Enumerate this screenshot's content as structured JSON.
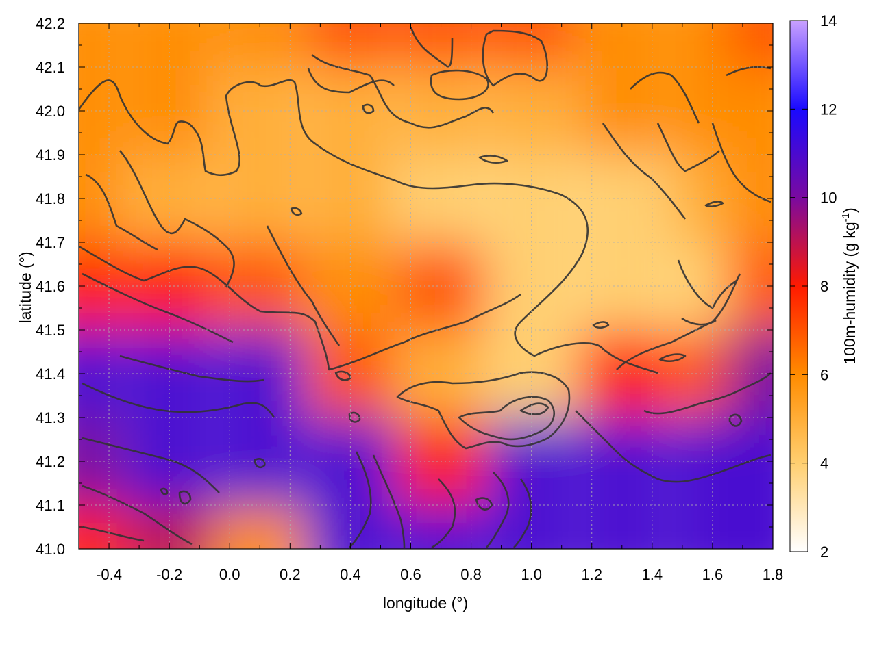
{
  "chart_data": {
    "type": "heatmap",
    "title": "",
    "xlabel": "longitude (°)",
    "ylabel": "latitude (°)",
    "colorbar_label_main": "100m-humidity (g kg",
    "colorbar_label_sup": "-1",
    "colorbar_label_end": ")",
    "xlim": [
      -0.5,
      1.8
    ],
    "ylim": [
      41.0,
      42.2
    ],
    "clim": [
      2,
      14
    ],
    "grid": true,
    "x_ticks": [
      "-0.4",
      "-0.2",
      "0.0",
      "0.2",
      "0.4",
      "0.6",
      "0.8",
      "1.0",
      "1.2",
      "1.4",
      "1.6",
      "1.8"
    ],
    "y_ticks": [
      "41.0",
      "41.1",
      "41.2",
      "41.3",
      "41.4",
      "41.5",
      "41.6",
      "41.7",
      "41.8",
      "41.9",
      "42.0",
      "42.1",
      "42.2"
    ],
    "colorbar_ticks": [
      "2",
      "4",
      "6",
      "8",
      "10",
      "12",
      "14"
    ],
    "colormap": [
      {
        "value": 2,
        "color": "#ffffff"
      },
      {
        "value": 4,
        "color": "#ffcf70"
      },
      {
        "value": 6,
        "color": "#ff8c00"
      },
      {
        "value": 8,
        "color": "#ff1a00"
      },
      {
        "value": 10,
        "color": "#7a0aa0"
      },
      {
        "value": 12,
        "color": "#1a0aff"
      },
      {
        "value": 14,
        "color": "#c9a0ff"
      }
    ],
    "field_grid": {
      "lon": [
        -0.5,
        -0.2,
        0.1,
        0.4,
        0.7,
        1.0,
        1.3,
        1.6,
        1.8
      ],
      "lat": [
        41.0,
        41.2,
        41.4,
        41.6,
        41.8,
        42.0,
        42.2
      ],
      "humidity": [
        [
          8,
          9,
          6,
          11,
          11,
          11,
          11,
          11,
          11
        ],
        [
          10,
          11,
          11,
          11,
          8,
          11,
          11,
          11,
          11
        ],
        [
          11,
          11,
          11,
          7,
          5,
          4,
          8,
          7,
          10
        ],
        [
          8,
          8,
          7,
          6,
          7,
          4,
          4,
          4,
          7
        ],
        [
          6,
          5,
          5,
          5,
          4,
          4,
          4,
          5,
          6
        ],
        [
          6,
          6,
          5,
          5,
          5,
          5,
          6,
          6,
          6
        ],
        [
          6,
          6,
          6,
          7,
          7,
          7,
          6,
          6,
          7
        ]
      ]
    }
  }
}
